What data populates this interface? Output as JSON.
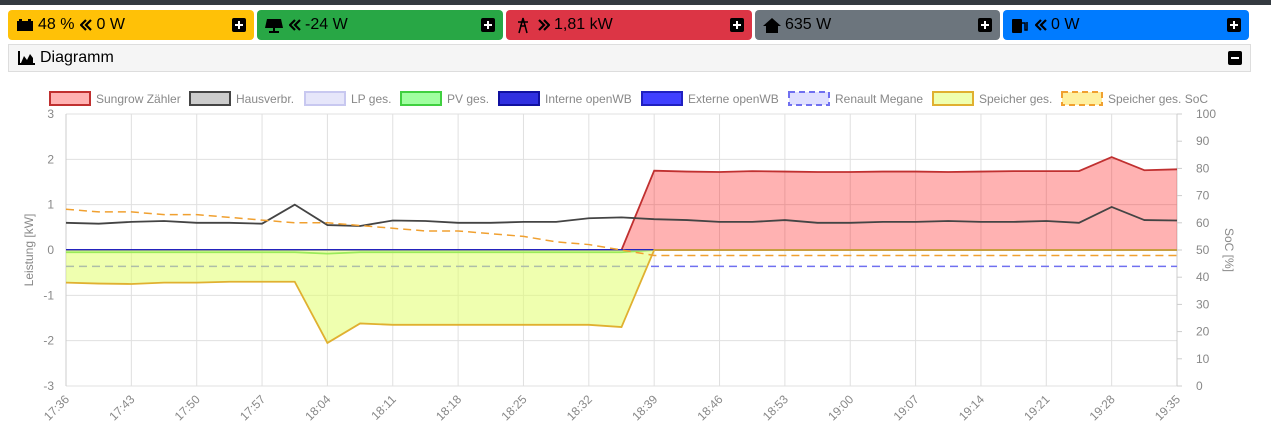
{
  "status_bar": [
    {
      "labels": [
        "48 %",
        "0 W"
      ],
      "color": "#ffc107"
    },
    {
      "labels": [
        "-24 W"
      ],
      "color": "#28a745"
    },
    {
      "labels": [
        "1,81 kW"
      ],
      "color": "#dc3545"
    },
    {
      "labels": [
        "635 W"
      ],
      "color": "#6c757d"
    },
    {
      "labels": [
        "0 W"
      ],
      "color": "#007bff"
    }
  ],
  "panel": {
    "title": "Diagramm"
  },
  "chart_data": {
    "type": "line",
    "ylabel": "Leistung [kW]",
    "y2label": "SoC [%]",
    "categories": [
      "17:36",
      null,
      "17:43",
      null,
      "17:50",
      null,
      "17:57",
      null,
      "18:04",
      null,
      "18:11",
      null,
      "18:18",
      null,
      "18:25",
      null,
      "18:32",
      null,
      "18:39",
      null,
      "18:46",
      null,
      "18:53",
      null,
      "19:00",
      null,
      "19:07",
      null,
      "19:14",
      null,
      "19:21",
      null,
      "19:28",
      null,
      "19:35"
    ],
    "ylim": [
      -3,
      3
    ],
    "yticks": [
      -3,
      -2,
      -1,
      0,
      1,
      2,
      3
    ],
    "y2lim": [
      0,
      100
    ],
    "y2ticks": [
      0,
      10,
      20,
      30,
      40,
      50,
      60,
      70,
      80,
      90,
      100
    ],
    "grid": true,
    "series": [
      {
        "name": "Sungrow Zähler",
        "color": "#c03030",
        "fill": "rgba(255,0,0,0.3)",
        "values": [
          0,
          0,
          0,
          0,
          0,
          0,
          0,
          0,
          0,
          0,
          0,
          0,
          0,
          0,
          0,
          0,
          0,
          0,
          1.75,
          1.73,
          1.72,
          1.74,
          1.73,
          1.72,
          1.72,
          1.73,
          1.73,
          1.72,
          1.73,
          1.74,
          1.74,
          1.74,
          2.05,
          1.76,
          1.78
        ]
      },
      {
        "name": "Hausverbr.",
        "color": "#444444",
        "legend_fill": "#cccccc",
        "values": [
          0.6,
          0.58,
          0.62,
          0.64,
          0.6,
          0.6,
          0.58,
          1.0,
          0.55,
          0.53,
          0.65,
          0.64,
          0.6,
          0.6,
          0.62,
          0.62,
          0.7,
          0.72,
          0.68,
          0.66,
          0.62,
          0.62,
          0.66,
          0.6,
          0.6,
          0.62,
          0.62,
          0.64,
          0.62,
          0.62,
          0.64,
          0.6,
          0.95,
          0.66,
          0.65
        ]
      },
      {
        "name": "LP ges.",
        "color": "#c8c8f0",
        "legend_fill": "#e6e6fa",
        "values": [
          0,
          0,
          0,
          0,
          0,
          0,
          0,
          0,
          0,
          0,
          0,
          0,
          0,
          0,
          0,
          0,
          0,
          0,
          0,
          0,
          0,
          0,
          0,
          0,
          0,
          0,
          0,
          0,
          0,
          0,
          0,
          0,
          0,
          0,
          0
        ]
      },
      {
        "name": "PV ges.",
        "color": "#40d040",
        "legend_fill": "#a0ffa0",
        "values": [
          -0.05,
          -0.05,
          -0.05,
          -0.05,
          -0.05,
          -0.05,
          -0.05,
          -0.05,
          -0.08,
          -0.05,
          -0.05,
          -0.05,
          -0.05,
          -0.05,
          -0.05,
          -0.05,
          -0.05,
          -0.05,
          0,
          0,
          0,
          0,
          0,
          0,
          0,
          0,
          0,
          0,
          0,
          0,
          0,
          0,
          0,
          0,
          0
        ]
      },
      {
        "name": "Interne openWB",
        "color": "#1010a0",
        "legend_fill": "#3030e0",
        "values": [
          0,
          0,
          0,
          0,
          0,
          0,
          0,
          0,
          0,
          0,
          0,
          0,
          0,
          0,
          0,
          0,
          0,
          0,
          0,
          0,
          0,
          0,
          0,
          0,
          0,
          0,
          0,
          0,
          0,
          0,
          0,
          0,
          0,
          0,
          0
        ]
      },
      {
        "name": "Externe openWB",
        "color": "#2020c0",
        "legend_fill": "#4040ff",
        "values": [
          0,
          0,
          0,
          0,
          0,
          0,
          0,
          0,
          0,
          0,
          0,
          0,
          0,
          0,
          0,
          0,
          0,
          0,
          0,
          0,
          0,
          0,
          0,
          0,
          0,
          0,
          0,
          0,
          0,
          0,
          0,
          0,
          0,
          0,
          0
        ]
      },
      {
        "name": "Renault Megane",
        "color": "#7070f0",
        "legend_fill": "#e0e0ff",
        "dash": true,
        "axis": "y2",
        "values": [
          44,
          44,
          44,
          44,
          44,
          44,
          44,
          44,
          44,
          44,
          44,
          44,
          44,
          44,
          44,
          44,
          44,
          44,
          44,
          44,
          44,
          44,
          44,
          44,
          44,
          44,
          44,
          44,
          44,
          44,
          44,
          44,
          44,
          44,
          44
        ]
      },
      {
        "name": "Speicher ges.",
        "color": "#e0b030",
        "fill": "rgba(225,255,110,0.55)",
        "values": [
          -0.72,
          -0.74,
          -0.75,
          -0.72,
          -0.72,
          -0.7,
          -0.7,
          -0.7,
          -2.05,
          -1.62,
          -1.65,
          -1.65,
          -1.65,
          -1.65,
          -1.65,
          -1.65,
          -1.65,
          -1.7,
          0,
          0,
          0,
          0,
          0,
          0,
          0,
          0,
          0,
          0,
          0,
          0,
          0,
          0,
          0,
          0,
          0
        ]
      },
      {
        "name": "Speicher ges. SoC",
        "color": "#f0a030",
        "legend_fill": "#fff0a0",
        "dash": true,
        "axis": "y2",
        "values": [
          65,
          64,
          64,
          63,
          63,
          62,
          61,
          60,
          60,
          59,
          58,
          57,
          57,
          56,
          55,
          53,
          52,
          50,
          48,
          48,
          48,
          48,
          48,
          48,
          48,
          48,
          48,
          48,
          48,
          48,
          48,
          48,
          48,
          48,
          48
        ]
      }
    ]
  }
}
